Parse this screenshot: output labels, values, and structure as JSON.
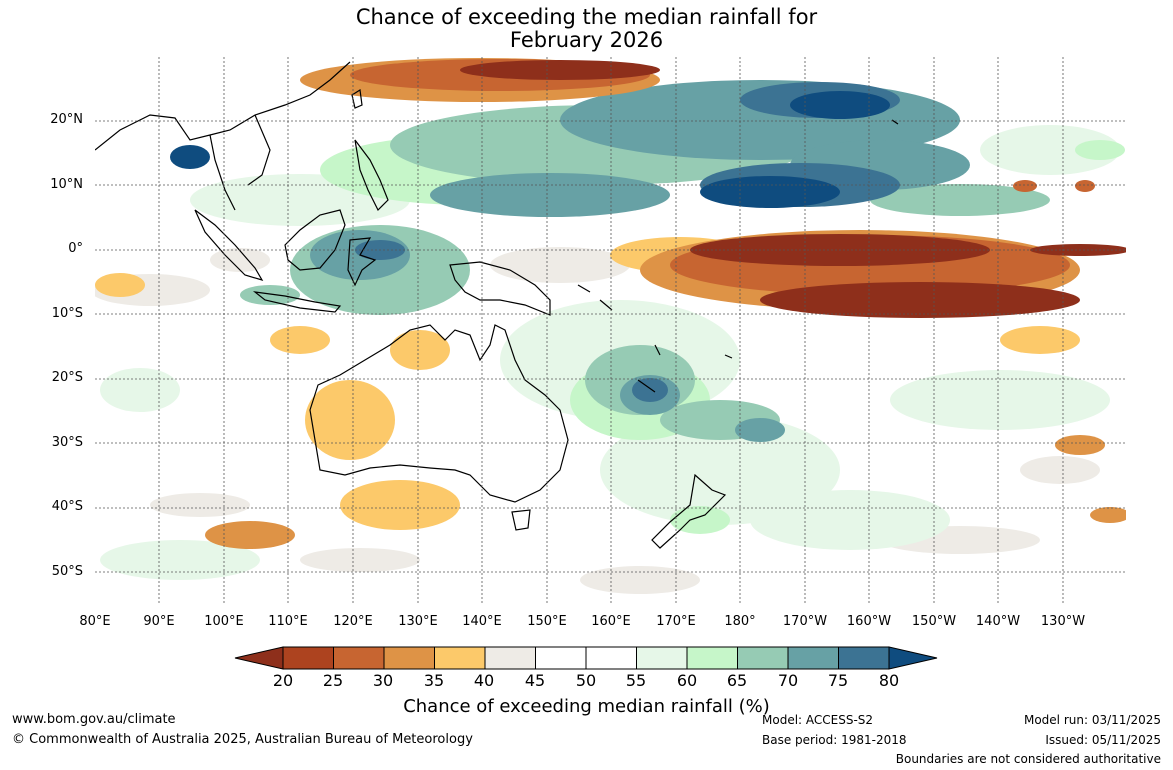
{
  "title": {
    "line1": "Chance of exceeding the median rainfall for",
    "line2": "February 2026"
  },
  "map": {
    "y_axis_labels": [
      "20°N",
      "10°N",
      "0°",
      "10°S",
      "20°S",
      "30°S",
      "40°S",
      "50°S"
    ],
    "x_axis_labels": [
      "80°E",
      "90°E",
      "100°E",
      "110°E",
      "120°E",
      "130°E",
      "140°E",
      "150°E",
      "160°E",
      "170°E",
      "180°",
      "170°W",
      "160°W",
      "150°W",
      "140°W",
      "130°W"
    ]
  },
  "colorbar": {
    "ticks": [
      "20",
      "25",
      "30",
      "35",
      "40",
      "45",
      "50",
      "55",
      "60",
      "65",
      "70",
      "75",
      "80"
    ],
    "colors": [
      "#8e2f1b",
      "#ad431f",
      "#c76531",
      "#de9346",
      "#fcc96a",
      "#eeebe6",
      "#ffffff",
      "#ffffff",
      "#e6f7e8",
      "#c6f6c9",
      "#96cbb4",
      "#67a1a5",
      "#3c7393",
      "#0f4c7f"
    ],
    "label": "Chance of exceeding median rainfall (%)"
  },
  "footer": {
    "website": "www.bom.gov.au/climate",
    "copyright": "© Commonwealth of Australia 2025, Australian Bureau of Meteorology",
    "model": "Model: ACCESS-S2",
    "base_period": "Base period: 1981-2018",
    "model_run": "Model run: 03/11/2025",
    "issued": "Issued: 05/11/2025",
    "disclaimer": "Boundaries are not considered authoritative"
  }
}
